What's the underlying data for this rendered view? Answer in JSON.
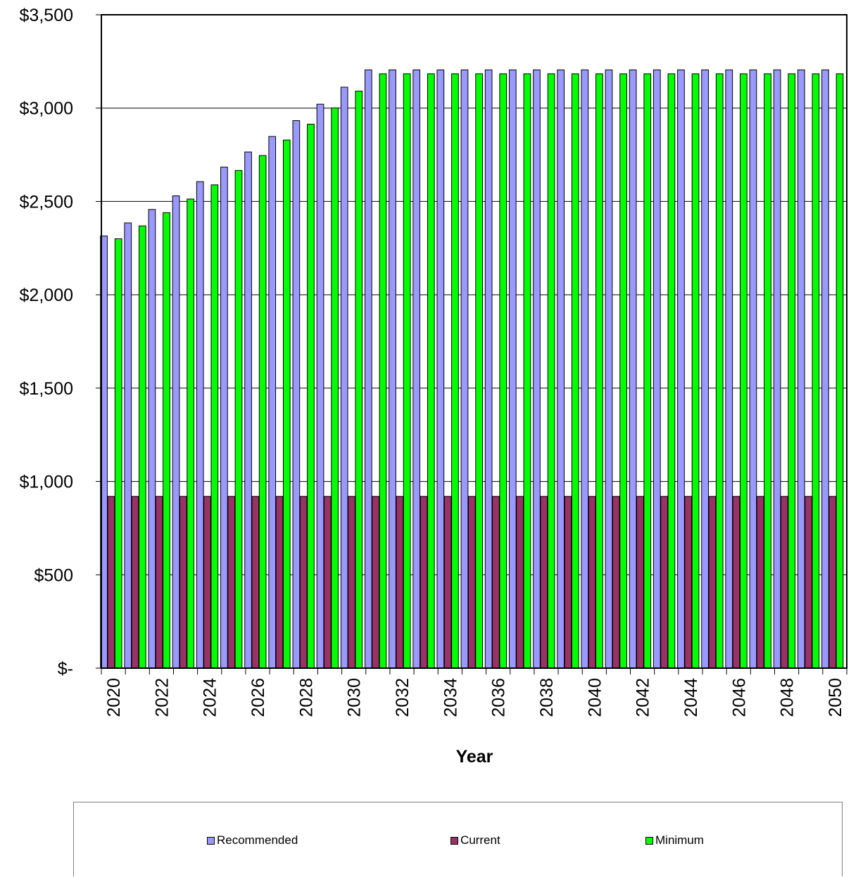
{
  "chart_data": {
    "type": "bar",
    "title": "",
    "xlabel": "Year",
    "ylabel": "",
    "ylim": [
      0,
      3500
    ],
    "yticks": [
      0,
      500,
      1000,
      1500,
      2000,
      2500,
      3000,
      3500
    ],
    "ytick_labels": [
      "$-",
      "$500",
      "$1,000",
      "$1,500",
      "$2,000",
      "$2,500",
      "$3,000",
      "$3,500"
    ],
    "grid": "horizontal",
    "legend_position": "bottom",
    "categories": [
      2020,
      2021,
      2022,
      2023,
      2024,
      2025,
      2026,
      2027,
      2028,
      2029,
      2030,
      2031,
      2032,
      2033,
      2034,
      2035,
      2036,
      2037,
      2038,
      2039,
      2040,
      2041,
      2042,
      2043,
      2044,
      2045,
      2046,
      2047,
      2048,
      2049,
      2050
    ],
    "xtick_labels": [
      "2020",
      "2022",
      "2024",
      "2026",
      "2028",
      "2030",
      "2032",
      "2034",
      "2036",
      "2038",
      "2040",
      "2042",
      "2044",
      "2046",
      "2048",
      "2050"
    ],
    "series": [
      {
        "name": "Recommended",
        "color": "#9999FF",
        "values": [
          2315,
          2385,
          2457,
          2530,
          2606,
          2684,
          2765,
          2848,
          2933,
          3021,
          3112,
          3205,
          3205,
          3205,
          3205,
          3205,
          3205,
          3205,
          3205,
          3205,
          3205,
          3205,
          3205,
          3205,
          3205,
          3205,
          3205,
          3205,
          3205,
          3205,
          3205
        ]
      },
      {
        "name": "Current",
        "color": "#993366",
        "values": [
          920,
          920,
          920,
          920,
          920,
          920,
          920,
          920,
          920,
          920,
          920,
          920,
          920,
          920,
          920,
          920,
          920,
          920,
          920,
          920,
          920,
          920,
          920,
          920,
          920,
          920,
          920,
          920,
          920,
          920,
          920
        ]
      },
      {
        "name": "Minimum",
        "color": "#00FF00",
        "values": [
          2300,
          2369,
          2440,
          2513,
          2589,
          2666,
          2746,
          2829,
          2914,
          3001,
          3091,
          3184,
          3184,
          3184,
          3184,
          3184,
          3184,
          3184,
          3184,
          3184,
          3184,
          3184,
          3184,
          3184,
          3184,
          3184,
          3184,
          3184,
          3184,
          3184,
          3184
        ]
      }
    ]
  }
}
